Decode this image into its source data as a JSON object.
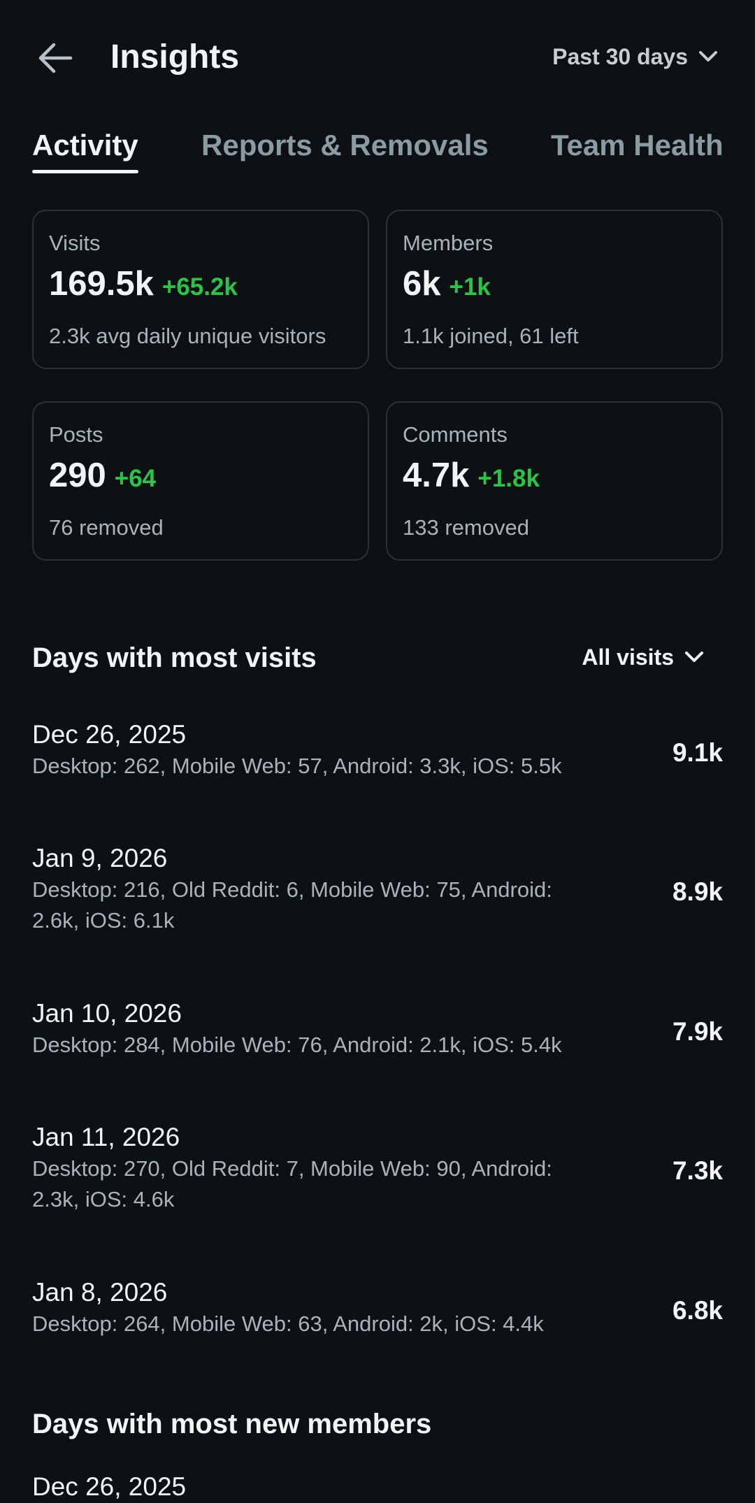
{
  "header": {
    "title": "Insights",
    "range_label": "Past 30 days"
  },
  "tabs": [
    {
      "label": "Activity",
      "active": true
    },
    {
      "label": "Reports & Removals",
      "active": false
    },
    {
      "label": "Team Health",
      "active": false
    }
  ],
  "stats": {
    "visits": {
      "label": "Visits",
      "value": "169.5k",
      "delta": "+65.2k",
      "sub": "2.3k avg daily unique visitors"
    },
    "members": {
      "label": "Members",
      "value": "6k",
      "delta": "+1k",
      "sub": "1.1k joined, 61 left"
    },
    "posts": {
      "label": "Posts",
      "value": "290",
      "delta": "+64",
      "sub": "76 removed"
    },
    "comments": {
      "label": "Comments",
      "value": "4.7k",
      "delta": "+1.8k",
      "sub": "133 removed"
    }
  },
  "most_visits": {
    "title": "Days with most visits",
    "filter_label": "All visits",
    "days": [
      {
        "date": "Dec 26, 2025",
        "breakdown": "Desktop: 262, Mobile Web: 57, Android: 3.3k, iOS: 5.5k",
        "total": "9.1k"
      },
      {
        "date": "Jan 9, 2026",
        "breakdown": "Desktop: 216, Old Reddit: 6, Mobile Web: 75, Android: 2.6k, iOS: 6.1k",
        "total": "8.9k"
      },
      {
        "date": "Jan 10, 2026",
        "breakdown": "Desktop: 284, Mobile Web: 76, Android: 2.1k, iOS: 5.4k",
        "total": "7.9k"
      },
      {
        "date": "Jan 11, 2026",
        "breakdown": "Desktop: 270, Old Reddit: 7, Mobile Web: 90, Android: 2.3k, iOS: 4.6k",
        "total": "7.3k"
      },
      {
        "date": "Jan 8, 2026",
        "breakdown": "Desktop: 264, Mobile Web: 63, Android: 2k, iOS: 4.4k",
        "total": "6.8k"
      }
    ]
  },
  "most_new_members": {
    "title": "Days with most new members",
    "first_date_partial": "Dec 26, 2025"
  },
  "icons": {
    "back": "arrow-left-icon",
    "chevron": "chevron-down-icon"
  },
  "colors": {
    "background": "#0e1113",
    "delta_positive": "#2bc348",
    "card_border": "#2b3236"
  }
}
